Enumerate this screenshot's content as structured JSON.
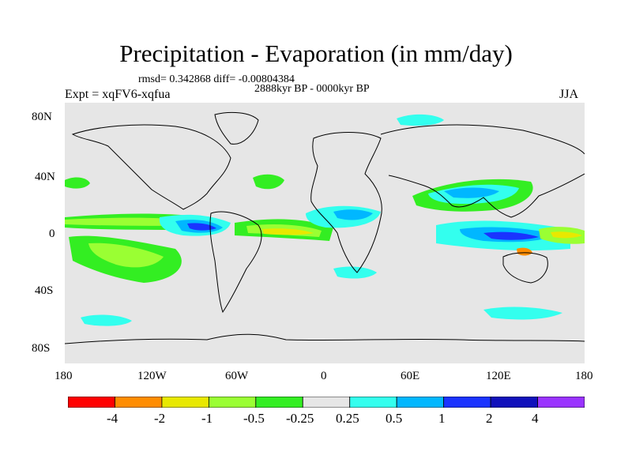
{
  "title": "Precipitation - Evaporation (in mm/day)",
  "stats": "rmsd= 0.342868 diff= -0.00804384",
  "period": "2888kyr BP - 0000kyr BP",
  "experiment": "Expt = xqFV6-xqfua",
  "season": "JJA",
  "axes": {
    "x_ticks": [
      "180",
      "120W",
      "60W",
      "0",
      "60E",
      "120E",
      "180"
    ],
    "y_ticks": [
      "80N",
      "40N",
      "0",
      "40S",
      "80S"
    ]
  },
  "colorbar": {
    "labels": [
      "-4",
      "-2",
      "-1",
      "-0.5",
      "-0.25",
      "0.25",
      "0.5",
      "1",
      "2",
      "4"
    ],
    "colors": [
      "#ff0000",
      "#ff8c00",
      "#e8e800",
      "#9aff33",
      "#33ee22",
      "#e6e6e6",
      "#33ffee",
      "#00b7ff",
      "#1a33ff",
      "#1010bb",
      "#9a33ff"
    ]
  },
  "palette": {
    "land_ocean": "#e6e6e6",
    "coast": "#000000"
  }
}
